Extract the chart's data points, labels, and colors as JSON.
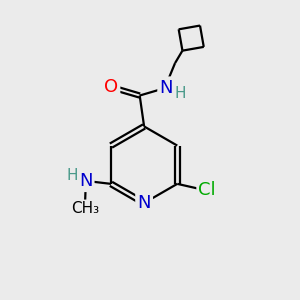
{
  "bg_color": "#ebebeb",
  "bond_color": "#000000",
  "atom_colors": {
    "O": "#ff0000",
    "N": "#0000cd",
    "Cl": "#00aa00",
    "C": "#000000",
    "H": "#4a9a8a"
  },
  "font_size_atom": 13,
  "font_size_H": 11,
  "line_width": 1.6
}
